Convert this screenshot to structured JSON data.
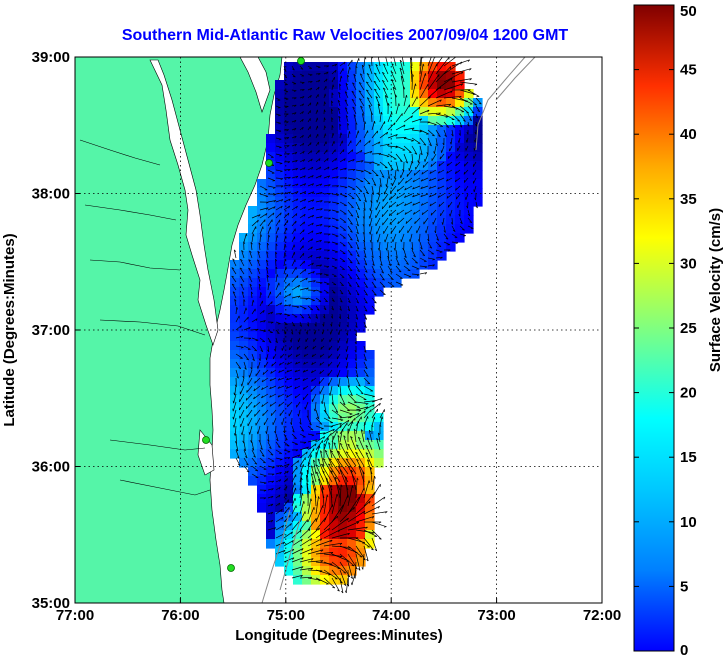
{
  "title": "Southern Mid-Atlantic Raw Velocities 2007/09/04 1200 GMT",
  "map": {
    "x_axis_label": "Longitude (Degrees:Minutes)",
    "y_axis_label": "Latitude (Degrees:Minutes)",
    "lon_range": [
      -77,
      -72
    ],
    "lat_range": [
      35,
      39
    ],
    "x_ticks": [
      {
        "value": -77,
        "label": "77:00"
      },
      {
        "value": -76,
        "label": "76:00"
      },
      {
        "value": -75,
        "label": "75:00"
      },
      {
        "value": -74,
        "label": "74:00"
      },
      {
        "value": -73,
        "label": "73:00"
      },
      {
        "value": -72,
        "label": "72:00"
      }
    ],
    "y_ticks": [
      {
        "value": 35,
        "label": "35:00"
      },
      {
        "value": 36,
        "label": "36:00"
      },
      {
        "value": 37,
        "label": "37:00"
      },
      {
        "value": 38,
        "label": "38:00"
      },
      {
        "value": 39,
        "label": "39:00"
      }
    ],
    "grid": "dotted",
    "land_color": "#55f5a8",
    "water_color": "#ffffff",
    "station_color": "#22dd22"
  },
  "colorbar": {
    "label": "Surface Velocity (cm/s)",
    "range": [
      0,
      50
    ],
    "ticks": [
      {
        "value": 0,
        "label": "0"
      },
      {
        "value": 5,
        "label": "5"
      },
      {
        "value": 10,
        "label": "10"
      },
      {
        "value": 15,
        "label": "15"
      },
      {
        "value": 20,
        "label": "20"
      },
      {
        "value": 25,
        "label": "25"
      },
      {
        "value": 30,
        "label": "30"
      },
      {
        "value": 35,
        "label": "35"
      },
      {
        "value": 40,
        "label": "40"
      },
      {
        "value": 45,
        "label": "45"
      },
      {
        "value": 50,
        "label": "50"
      }
    ],
    "colormap": "jet"
  }
}
